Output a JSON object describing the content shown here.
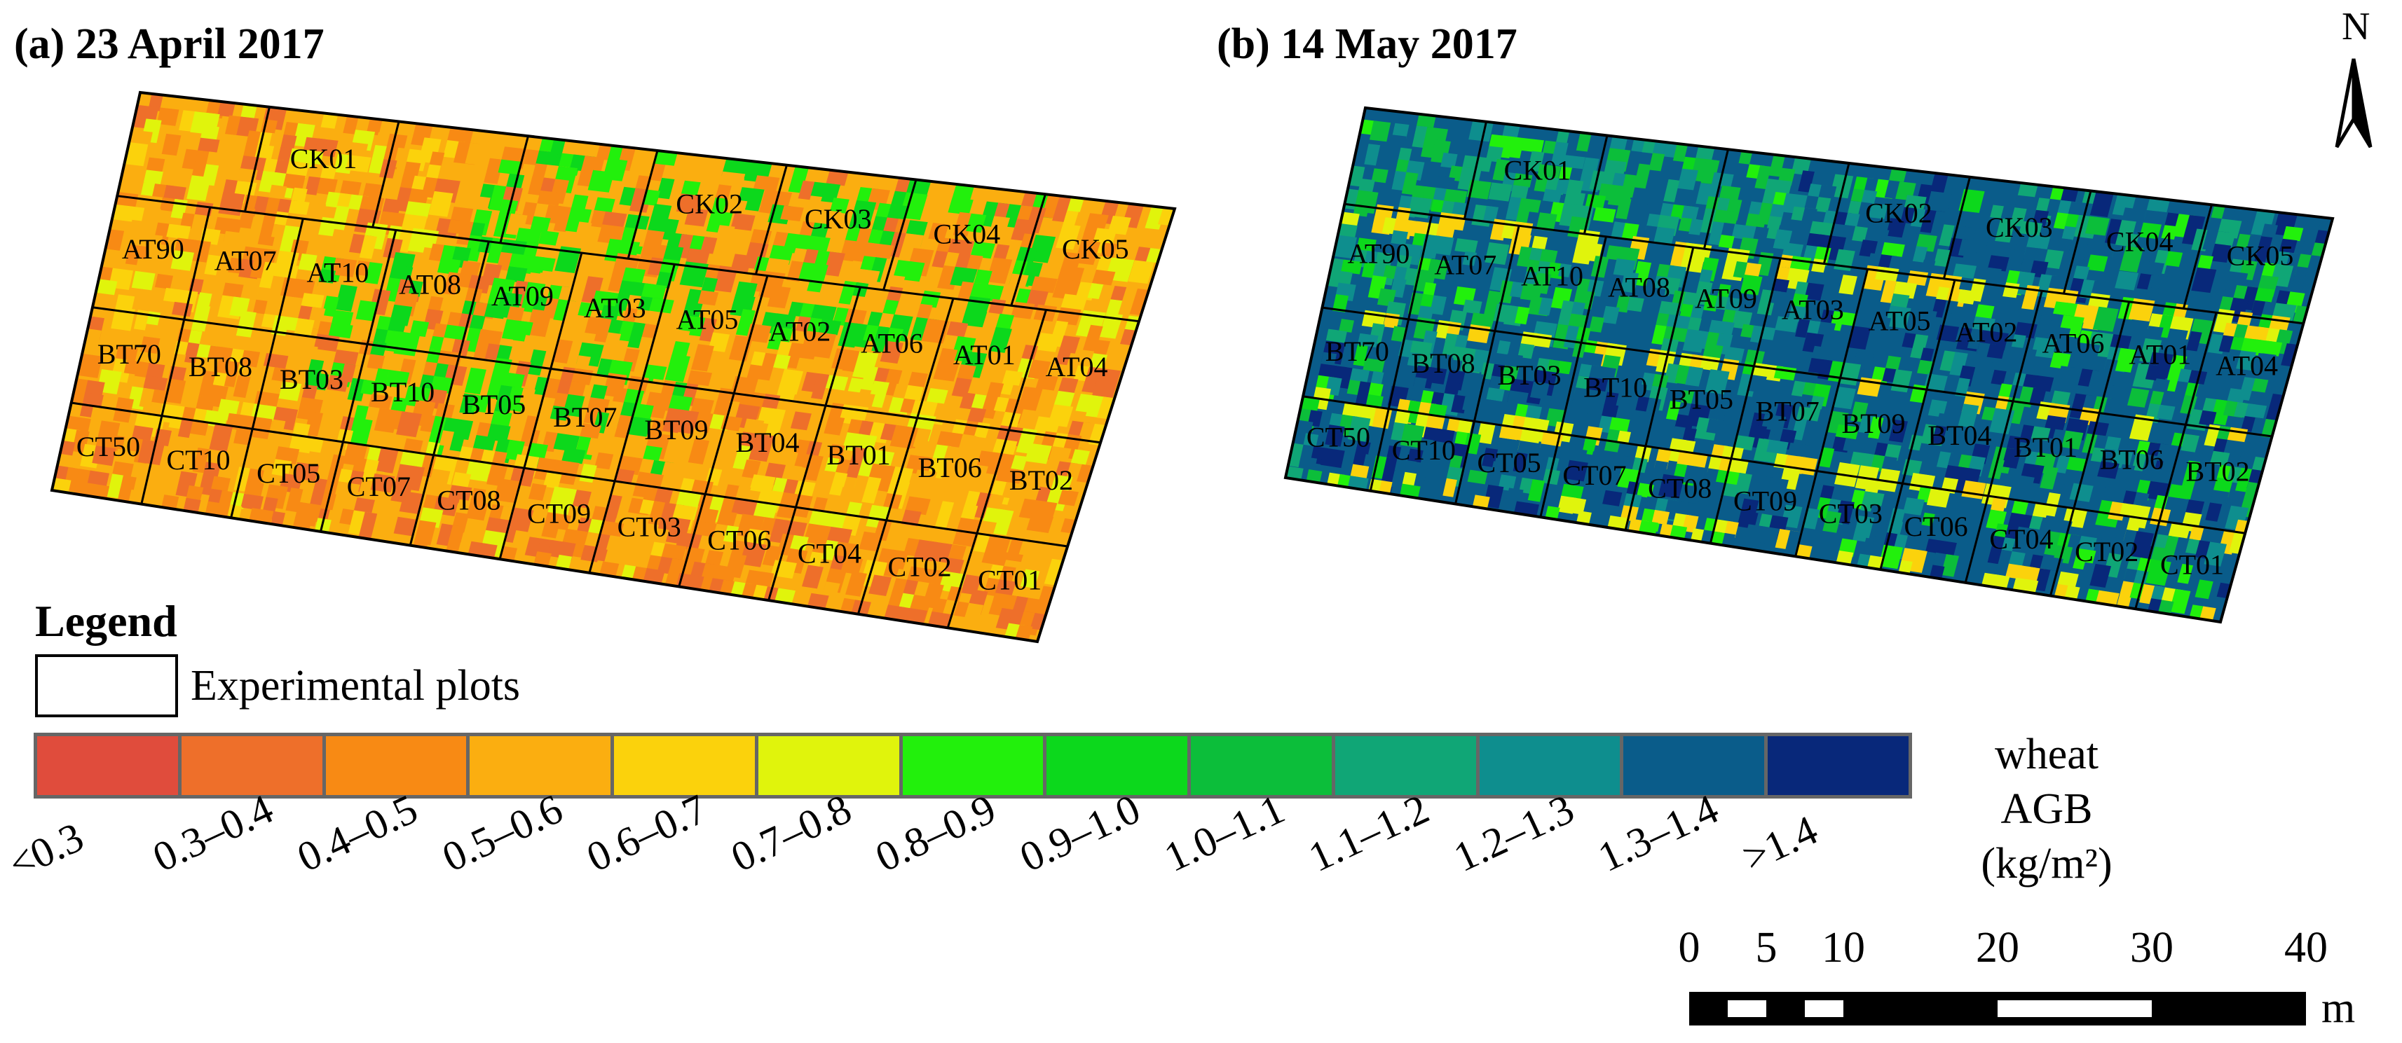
{
  "panels": [
    {
      "title": "(a)  23 April 2017",
      "plots": [
        "CK01",
        "CK02",
        "CK03",
        "CK04",
        "CK05",
        "AT90",
        "AT07",
        "AT10",
        "AT08",
        "AT09",
        "AT03",
        "AT05",
        "AT02",
        "AT06",
        "AT01",
        "AT04",
        "BT70",
        "BT08",
        "BT03",
        "BT10",
        "BT05",
        "BT07",
        "BT09",
        "BT04",
        "BT01",
        "BT06",
        "BT02",
        "CT50",
        "CT10",
        "CT05",
        "CT07",
        "CT08",
        "CT09",
        "CT03",
        "CT06",
        "CT04",
        "CT02",
        "CT01"
      ]
    },
    {
      "title": "(b)  14 May 2017",
      "plots": [
        "CK01",
        "CK02",
        "CK03",
        "CK04",
        "CK05",
        "AT90",
        "AT07",
        "AT10",
        "AT08",
        "AT09",
        "AT03",
        "AT05",
        "AT02",
        "AT06",
        "AT01",
        "AT04",
        "BT70",
        "BT08",
        "BT03",
        "BT10",
        "BT05",
        "BT07",
        "BT09",
        "BT04",
        "BT01",
        "BT06",
        "BT02",
        "CT50",
        "CT10",
        "CT05",
        "CT07",
        "CT08",
        "CT09",
        "CT03",
        "CT06",
        "CT04",
        "CT02",
        "CT01"
      ]
    }
  ],
  "legend": {
    "title": "Legend",
    "plots_label": "Experimental plots",
    "variable_label": "wheat AGB",
    "unit_label": "(kg/m²)",
    "classes": [
      {
        "label": "<0.3",
        "color": "#e04c3c"
      },
      {
        "label": "0.3–0.4",
        "color": "#ee6f2a"
      },
      {
        "label": "0.4–0.5",
        "color": "#f88a14"
      },
      {
        "label": "0.5–0.6",
        "color": "#fbae10"
      },
      {
        "label": "0.6–0.7",
        "color": "#fbd20c"
      },
      {
        "label": "0.7–0.8",
        "color": "#e0f40c"
      },
      {
        "label": "0.8–0.9",
        "color": "#22f00c"
      },
      {
        "label": "0.9–1.0",
        "color": "#0cd81c"
      },
      {
        "label": "1.0–1.1",
        "color": "#0cbe3a"
      },
      {
        "label": "1.1–1.2",
        "color": "#10a676"
      },
      {
        "label": "1.2–1.3",
        "color": "#0e8e8e"
      },
      {
        "label": "1.3–1.4",
        "color": "#0a5c8a"
      },
      {
        "label": ">1.4",
        "color": "#08287a"
      }
    ]
  },
  "north_arrow": {
    "label": "N"
  },
  "scale_bar": {
    "ticks": [
      "0",
      "5",
      "10",
      "20",
      "30",
      "40"
    ],
    "unit": "m"
  }
}
